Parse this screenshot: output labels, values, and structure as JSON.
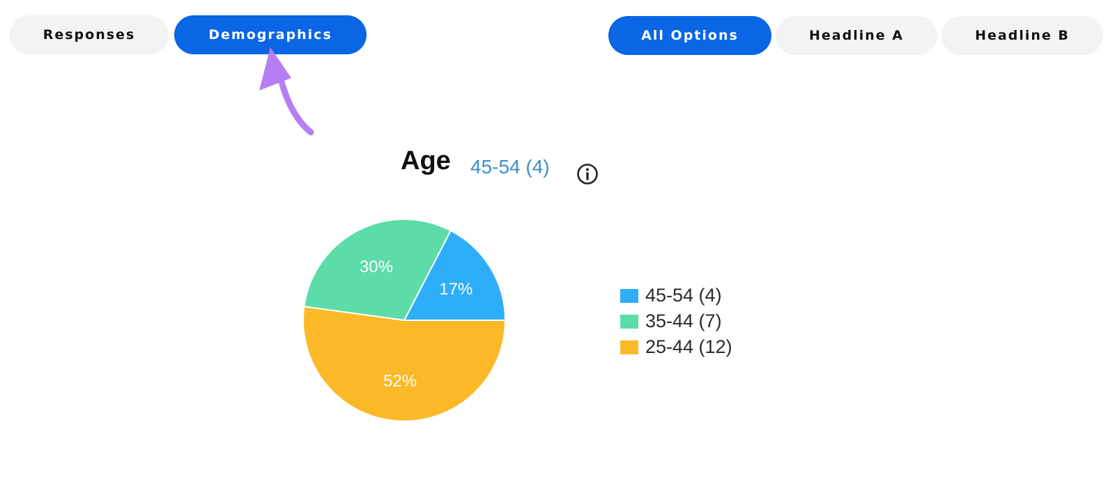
{
  "tabs": [
    {
      "label": "Responses",
      "active": false
    },
    {
      "label": "Demographics",
      "active": true
    }
  ],
  "filters": [
    {
      "label": "All Options",
      "active": true
    },
    {
      "label": "Headline A",
      "active": false
    },
    {
      "label": "Headline B",
      "active": false
    }
  ],
  "annotation": {
    "icon": "curved-arrow-icon",
    "color": "#b57ff3"
  },
  "chart_header": {
    "title": "Age",
    "subtitle": "45-54 (4)",
    "info_icon": "info-icon"
  },
  "colors": {
    "accent": "#0a66e4",
    "inactive_pill": "#f3f3f3",
    "subtitle": "#3d8fc6"
  },
  "chart_data": {
    "type": "pie",
    "title": "Age",
    "legend_placement": "right",
    "slices": [
      {
        "name": "45-54 (4)",
        "value": 4,
        "percent_label": "17%",
        "color": "#2eaef8"
      },
      {
        "name": "35-44 (7)",
        "value": 7,
        "percent_label": "30%",
        "color": "#5bdca8"
      },
      {
        "name": "25-44 (12)",
        "value": 12,
        "percent_label": "52%",
        "color": "#fbb928"
      }
    ]
  }
}
